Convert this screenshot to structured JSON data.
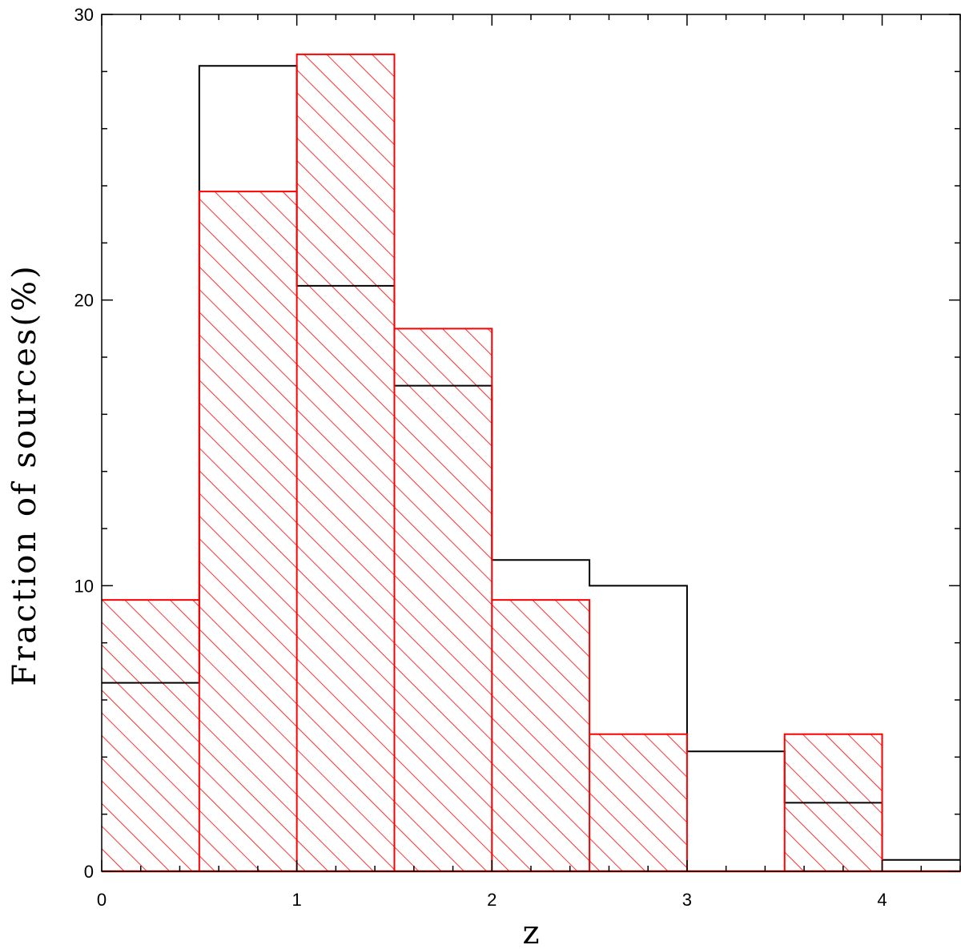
{
  "chart_data": {
    "type": "bar",
    "title": "",
    "xlabel": "z",
    "ylabel": "Fraction of sources(%)",
    "xlim": [
      0,
      4.4
    ],
    "ylim": [
      0,
      30
    ],
    "x_ticks": [
      0,
      1,
      2,
      3,
      4
    ],
    "x_tick_labels": [
      "0",
      "1",
      "2",
      "3",
      "4"
    ],
    "x_minor_step": 0.2,
    "y_ticks": [
      0,
      10,
      20,
      30
    ],
    "y_tick_labels": [
      "0",
      "10",
      "20",
      "30"
    ],
    "y_minor_step": 2,
    "bin_edges": [
      0,
      0.5,
      1,
      1.5,
      2,
      2.5,
      3,
      3.5,
      4,
      4.5
    ],
    "series": [
      {
        "style": "step",
        "color": "#000000",
        "values": [
          6.6,
          28.2,
          20.5,
          17.0,
          10.9,
          10.0,
          4.2,
          2.4,
          0.4
        ]
      },
      {
        "style": "hatched",
        "color": "#ff0000",
        "values": [
          9.5,
          23.8,
          28.6,
          19.0,
          9.5,
          4.8,
          0,
          4.8,
          0
        ]
      }
    ]
  }
}
